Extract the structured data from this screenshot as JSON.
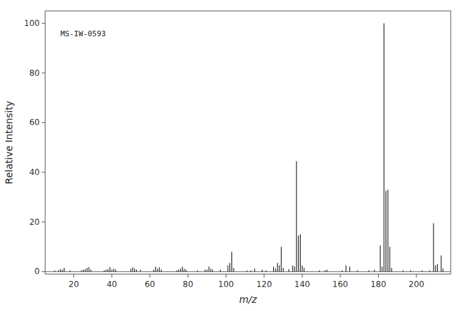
{
  "chart_data": {
    "type": "stem",
    "xlabel": "m/z",
    "ylabel": "Relative Intensity",
    "xlim": [
      5,
      218
    ],
    "ylim": [
      -1,
      105
    ],
    "xticks": [
      20,
      40,
      60,
      80,
      100,
      120,
      140,
      160,
      180,
      200
    ],
    "yticks": [
      0,
      20,
      40,
      60,
      80,
      100
    ],
    "color": "#000000",
    "grid": false,
    "x": [
      10,
      12,
      13,
      14,
      15,
      18,
      24,
      25,
      26,
      27,
      28,
      29,
      36,
      37,
      38,
      39,
      40,
      41,
      42,
      50,
      51,
      52,
      53,
      55,
      62,
      63,
      64,
      65,
      66,
      74,
      75,
      76,
      77,
      78,
      79,
      85,
      89,
      90,
      91,
      92,
      93,
      97,
      101,
      102,
      103,
      104,
      111,
      113,
      115,
      119,
      121,
      125,
      126,
      127,
      128,
      129,
      130,
      133,
      135,
      136,
      137,
      138,
      139,
      140,
      141,
      149,
      152,
      153,
      161,
      163,
      165,
      169,
      175,
      178,
      181,
      182,
      183,
      184,
      185,
      186,
      187,
      193,
      197,
      203,
      207,
      209,
      210,
      211,
      213,
      214
    ],
    "values": [
      0.5,
      0.5,
      1.0,
      0.8,
      1.5,
      0.5,
      0.5,
      0.8,
      1.0,
      1.5,
      1.8,
      0.8,
      0.5,
      0.8,
      1.0,
      1.8,
      0.8,
      1.2,
      0.8,
      1.2,
      1.8,
      1.2,
      0.8,
      0.8,
      0.8,
      2.0,
      1.2,
      1.8,
      0.8,
      0.5,
      0.8,
      1.2,
      2.0,
      1.2,
      0.8,
      0.5,
      0.8,
      0.8,
      2.0,
      1.2,
      0.8,
      0.8,
      2.5,
      3.5,
      8.0,
      1.5,
      0.5,
      0.5,
      1.2,
      0.8,
      0.5,
      2.0,
      1.2,
      3.5,
      2.5,
      10.0,
      1.5,
      1.0,
      2.5,
      2.0,
      44.5,
      14.5,
      15.0,
      2.5,
      1.5,
      0.5,
      0.5,
      0.8,
      0.5,
      2.5,
      2.0,
      0.5,
      0.5,
      0.8,
      10.5,
      2.0,
      100.0,
      32.5,
      33.0,
      10.0,
      1.5,
      0.5,
      0.5,
      0.5,
      0.5,
      19.5,
      2.5,
      3.0,
      6.5,
      1.2
    ],
    "annotations": [
      {
        "text": "MS-IW-0593",
        "x": 13,
        "y": 97
      }
    ]
  }
}
